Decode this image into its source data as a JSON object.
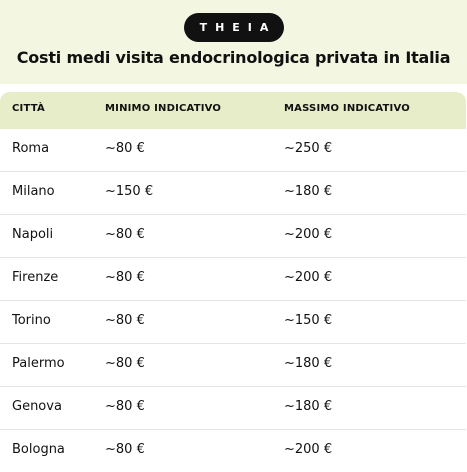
{
  "brand": {
    "logo_text": "THEIA"
  },
  "title": "Costi medi visita endocrinologica privata in Italia",
  "colors": {
    "header_bg": "#F3F6E0",
    "table_header_bg": "#E7EDC8",
    "logo_bg": "#111111",
    "row_divider": "#E4E4E4"
  },
  "table": {
    "columns": [
      "CITTÀ",
      "MINIMO INDICATIVO",
      "MASSIMO INDICATIVO"
    ],
    "rows": [
      [
        "Roma",
        "~80 €",
        "~250 €"
      ],
      [
        "Milano",
        "~150 €",
        "~180 €"
      ],
      [
        "Napoli",
        "~80 €",
        "~200 €"
      ],
      [
        "Firenze",
        "~80 €",
        "~200 €"
      ],
      [
        "Torino",
        "~80 €",
        "~150 €"
      ],
      [
        "Palermo",
        "~80 €",
        "~180 €"
      ],
      [
        "Genova",
        "~80 €",
        "~180 €"
      ],
      [
        "Bologna",
        "~80 €",
        "~200 €"
      ]
    ]
  }
}
